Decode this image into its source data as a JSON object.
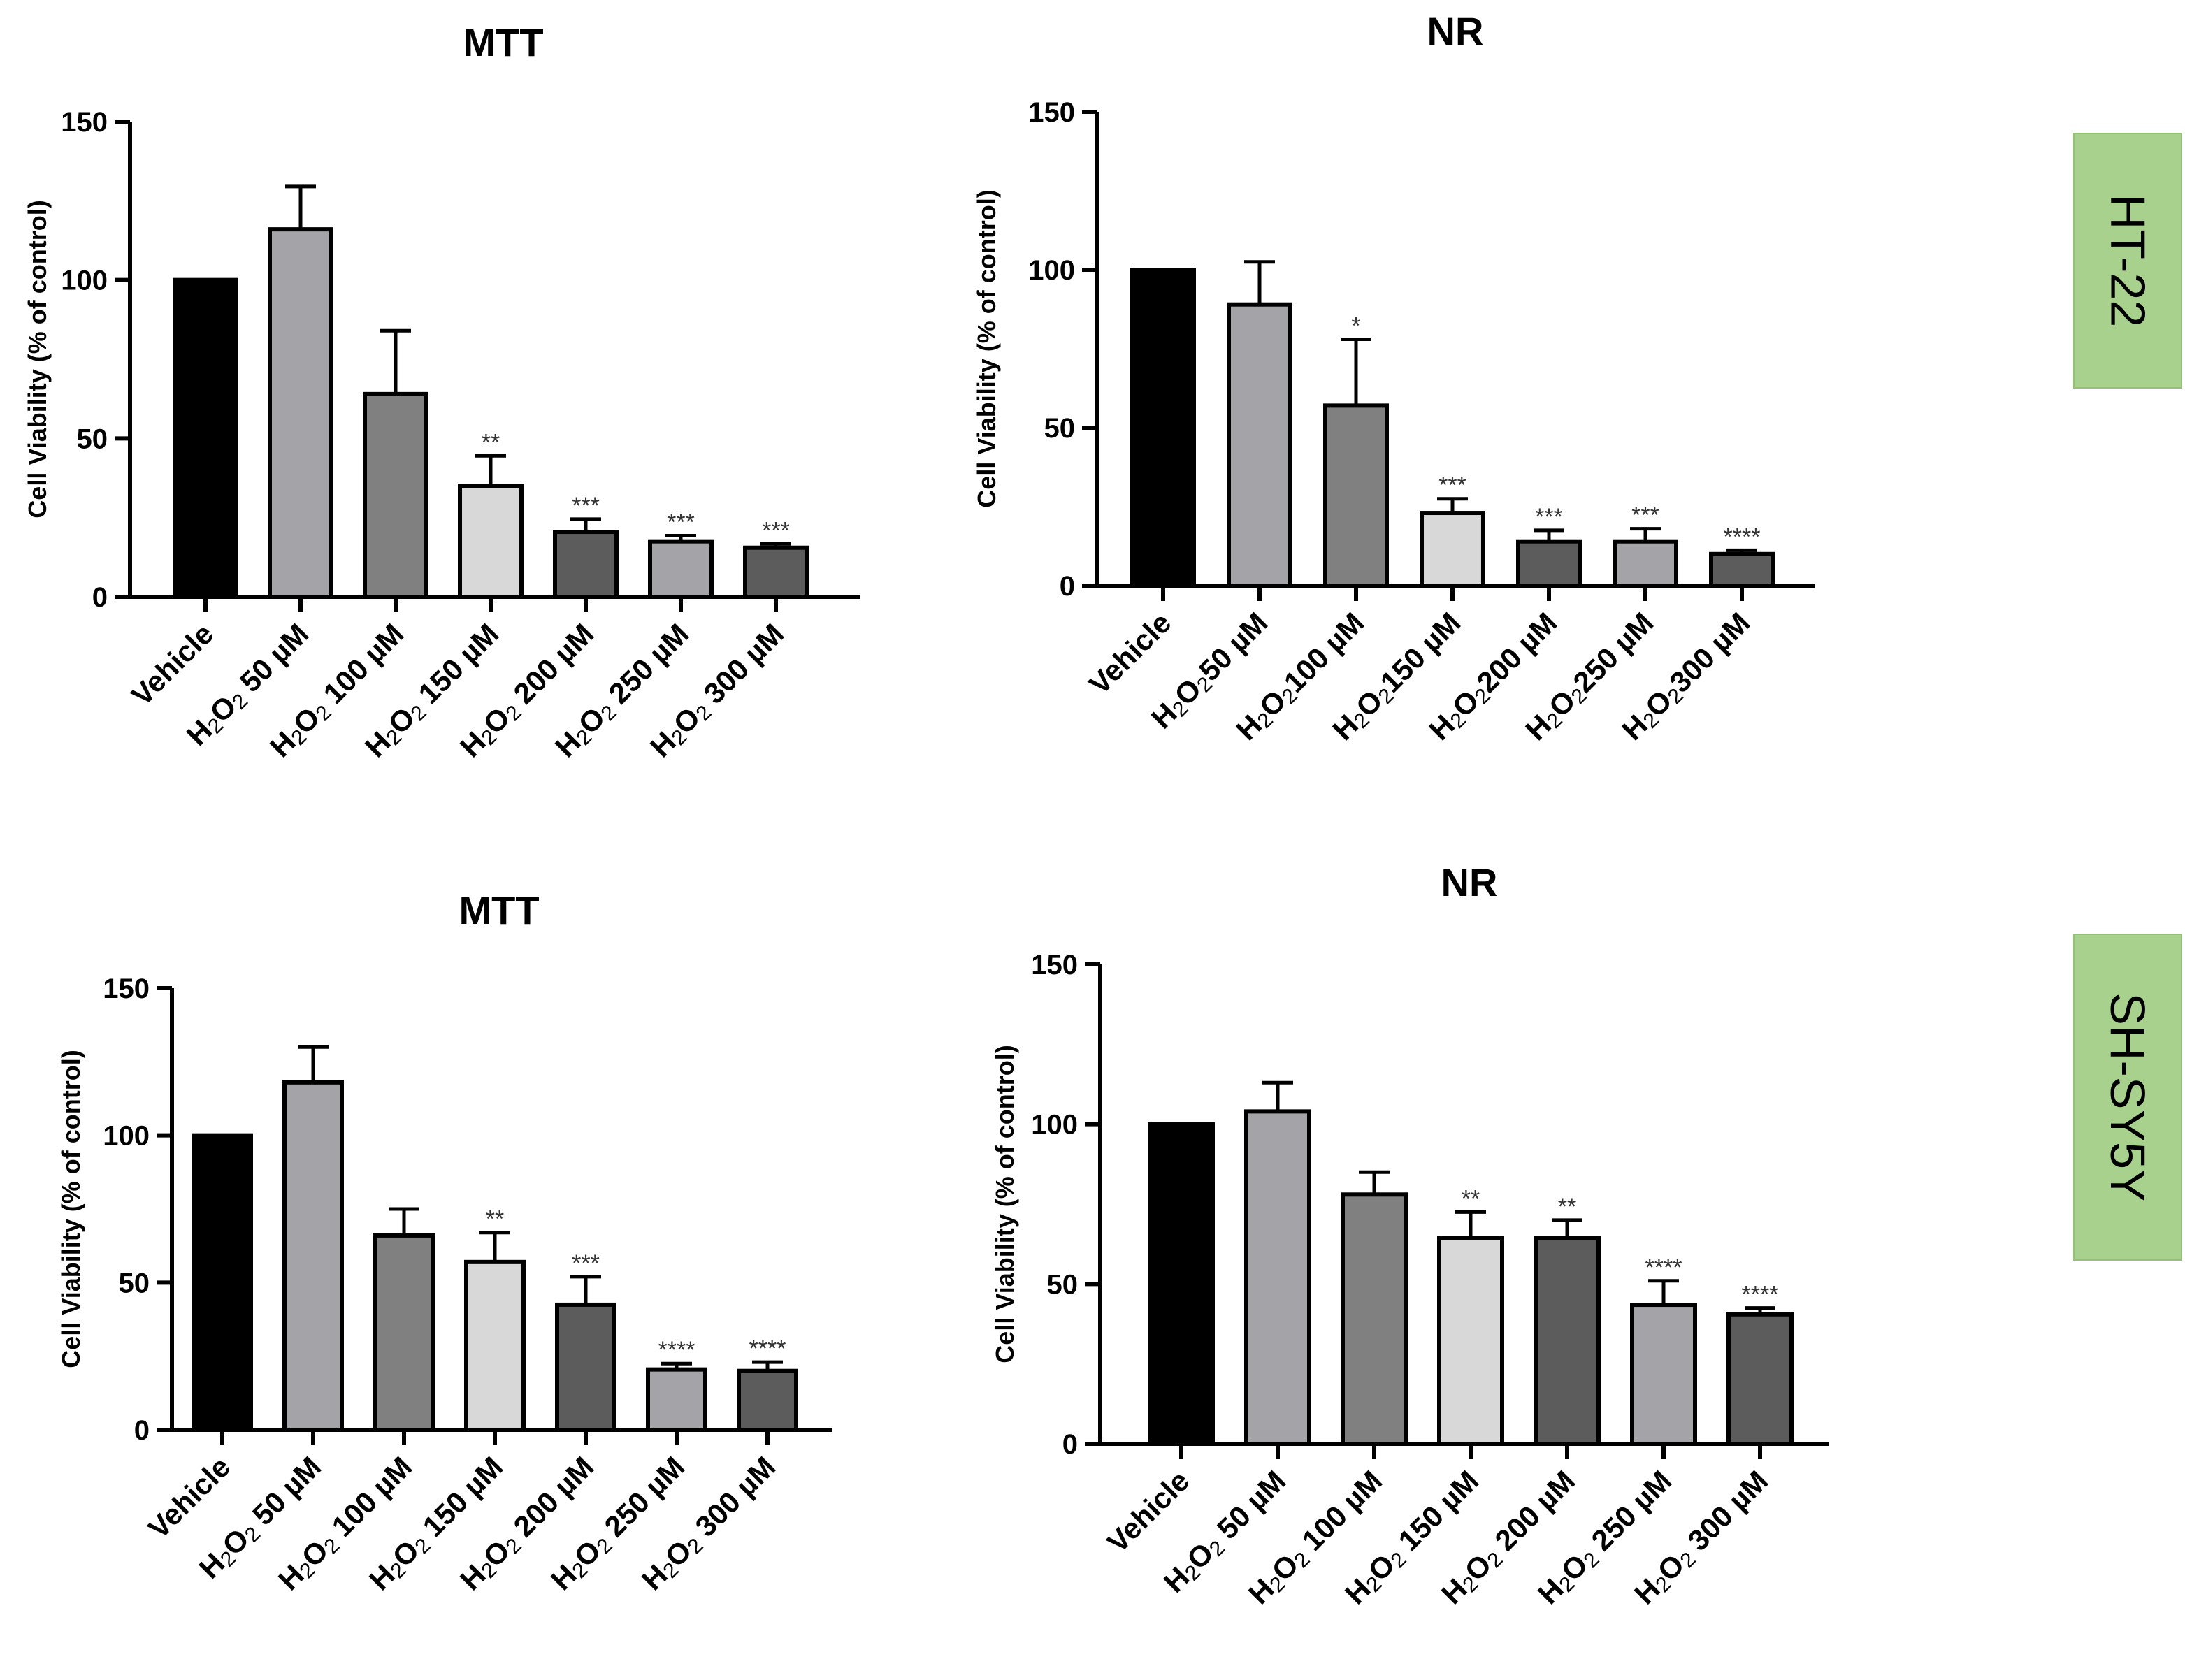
{
  "cell_lines": [
    "HT-22",
    "SH-SY5Y"
  ],
  "chart_data": [
    {
      "type": "bar",
      "title": "MTT",
      "cell_line": "HT-22",
      "ylabel": "Cell Viability (% of control)",
      "ylim": [
        0,
        150
      ],
      "yticks": [
        0,
        50,
        100,
        150
      ],
      "categories": [
        {
          "main": "Vehicle"
        },
        {
          "pre": "H",
          "s1": "2",
          "mid": "O",
          "s2": "2",
          "post": " 50 µM"
        },
        {
          "pre": "H",
          "s1": "2",
          "mid": "O",
          "s2": "2",
          "post": " 100 µM"
        },
        {
          "pre": "H",
          "s1": "2",
          "mid": "O",
          "s2": "2",
          "post": " 150 µM"
        },
        {
          "pre": "H",
          "s1": "2",
          "mid": "O",
          "s2": "2",
          "post": " 200 µM"
        },
        {
          "pre": "H",
          "s1": "2",
          "mid": "O",
          "s2": "2",
          "post": " 250 µM"
        },
        {
          "pre": "H",
          "s1": "2",
          "mid": "O",
          "s2": "2",
          "post": " 300 µM"
        }
      ],
      "values": [
        100,
        116,
        64,
        35,
        20.5,
        17.5,
        15.5
      ],
      "errors": [
        0,
        13.5,
        20,
        9.5,
        4,
        1.8,
        1.2
      ],
      "significance": [
        "",
        "",
        "",
        "**",
        "***",
        "***",
        "***"
      ],
      "colors": [
        "#000000",
        "#a3a3a8",
        "#808080",
        "#d8d8d8",
        "#5c5c5c",
        "#a3a3a8",
        "#5c5c5c"
      ]
    },
    {
      "type": "bar",
      "title": "NR",
      "cell_line": "HT-22",
      "ylabel": "Cell Viability (% of control)",
      "ylim": [
        0,
        150
      ],
      "yticks": [
        0,
        50,
        100,
        150
      ],
      "categories": [
        {
          "main": "Vehicle"
        },
        {
          "pre": "H",
          "s1": "2",
          "mid": "O",
          "s2": "2",
          "post": "50 µM"
        },
        {
          "pre": "H",
          "s1": "2",
          "mid": "O",
          "s2": "2",
          "post": "100 µM"
        },
        {
          "pre": "H",
          "s1": "2",
          "mid": "O",
          "s2": "2",
          "post": "150 µM"
        },
        {
          "pre": "H",
          "s1": "2",
          "mid": "O",
          "s2": "2",
          "post": "200 µM"
        },
        {
          "pre": "H",
          "s1": "2",
          "mid": "O",
          "s2": "2",
          "post": "250 µM"
        },
        {
          "pre": "H",
          "s1": "2",
          "mid": "O",
          "s2": "2",
          "post": "300 µM"
        }
      ],
      "values": [
        100,
        89,
        57,
        23,
        14,
        14,
        10
      ],
      "errors": [
        0,
        13.5,
        21,
        4.5,
        3.5,
        4,
        1.2
      ],
      "significance": [
        "",
        "",
        "*",
        "***",
        "***",
        "***",
        "****"
      ],
      "colors": [
        "#000000",
        "#a3a3a8",
        "#808080",
        "#d8d8d8",
        "#5c5c5c",
        "#a3a3a8",
        "#5c5c5c"
      ]
    },
    {
      "type": "bar",
      "title": "MTT",
      "cell_line": "SH-SY5Y",
      "ylabel": "Cell Viability (%  of control)",
      "ylim": [
        0,
        150
      ],
      "yticks": [
        0,
        50,
        100,
        150
      ],
      "categories": [
        {
          "main": "Vehicle"
        },
        {
          "pre": "H",
          "s1": "2",
          "mid": "O",
          "s2": "2",
          "post": " 50 µM"
        },
        {
          "pre": "H",
          "s1": "2",
          "mid": "O",
          "s2": "2",
          "post": " 100 µM"
        },
        {
          "pre": "H",
          "s1": "2",
          "mid": "O",
          "s2": "2",
          "post": " 150 µM"
        },
        {
          "pre": "H",
          "s1": "2",
          "mid": "O",
          "s2": "2",
          "post": " 200 µM"
        },
        {
          "pre": "H",
          "s1": "2",
          "mid": "O",
          "s2": "2",
          "post": " 250 µM"
        },
        {
          "pre": "H",
          "s1": "2",
          "mid": "O",
          "s2": "2",
          "post": " 300 µM"
        }
      ],
      "values": [
        100,
        118,
        66,
        57,
        42.5,
        20.5,
        20
      ],
      "errors": [
        0,
        12,
        9,
        10,
        9.5,
        2,
        3
      ],
      "significance": [
        "",
        "",
        "",
        "**",
        "***",
        "****",
        "****"
      ],
      "colors": [
        "#000000",
        "#a3a3a8",
        "#808080",
        "#d8d8d8",
        "#5c5c5c",
        "#a3a3a8",
        "#5c5c5c"
      ]
    },
    {
      "type": "bar",
      "title": "NR",
      "cell_line": "SH-SY5Y",
      "ylabel": "Cell Viability (% of control)",
      "ylim": [
        0,
        150
      ],
      "yticks": [
        0,
        50,
        100,
        150
      ],
      "categories": [
        {
          "main": "Vehicle"
        },
        {
          "pre": "H",
          "s1": "2",
          "mid": "O",
          "s2": "2",
          "post": " 50 µM"
        },
        {
          "pre": "H",
          "s1": "2",
          "mid": "O",
          "s2": "2",
          "post": " 100 µM"
        },
        {
          "pre": "H",
          "s1": "2",
          "mid": "O",
          "s2": "2",
          "post": " 150 µM"
        },
        {
          "pre": "H",
          "s1": "2",
          "mid": "O",
          "s2": "2",
          "post": " 200 µM"
        },
        {
          "pre": "H",
          "s1": "2",
          "mid": "O",
          "s2": "2",
          "post": " 250 µM"
        },
        {
          "pre": "H",
          "s1": "2",
          "mid": "O",
          "s2": "2",
          "post": " 300 µM"
        }
      ],
      "values": [
        100,
        104,
        78,
        64.5,
        64.5,
        43.5,
        40.5
      ],
      "errors": [
        0,
        9,
        7,
        8,
        5.5,
        7.5,
        2
      ],
      "significance": [
        "",
        "",
        "",
        "**",
        "**",
        "****",
        "****"
      ],
      "colors": [
        "#000000",
        "#a3a3a8",
        "#808080",
        "#d8d8d8",
        "#5c5c5c",
        "#a3a3a8",
        "#5c5c5c"
      ]
    }
  ]
}
